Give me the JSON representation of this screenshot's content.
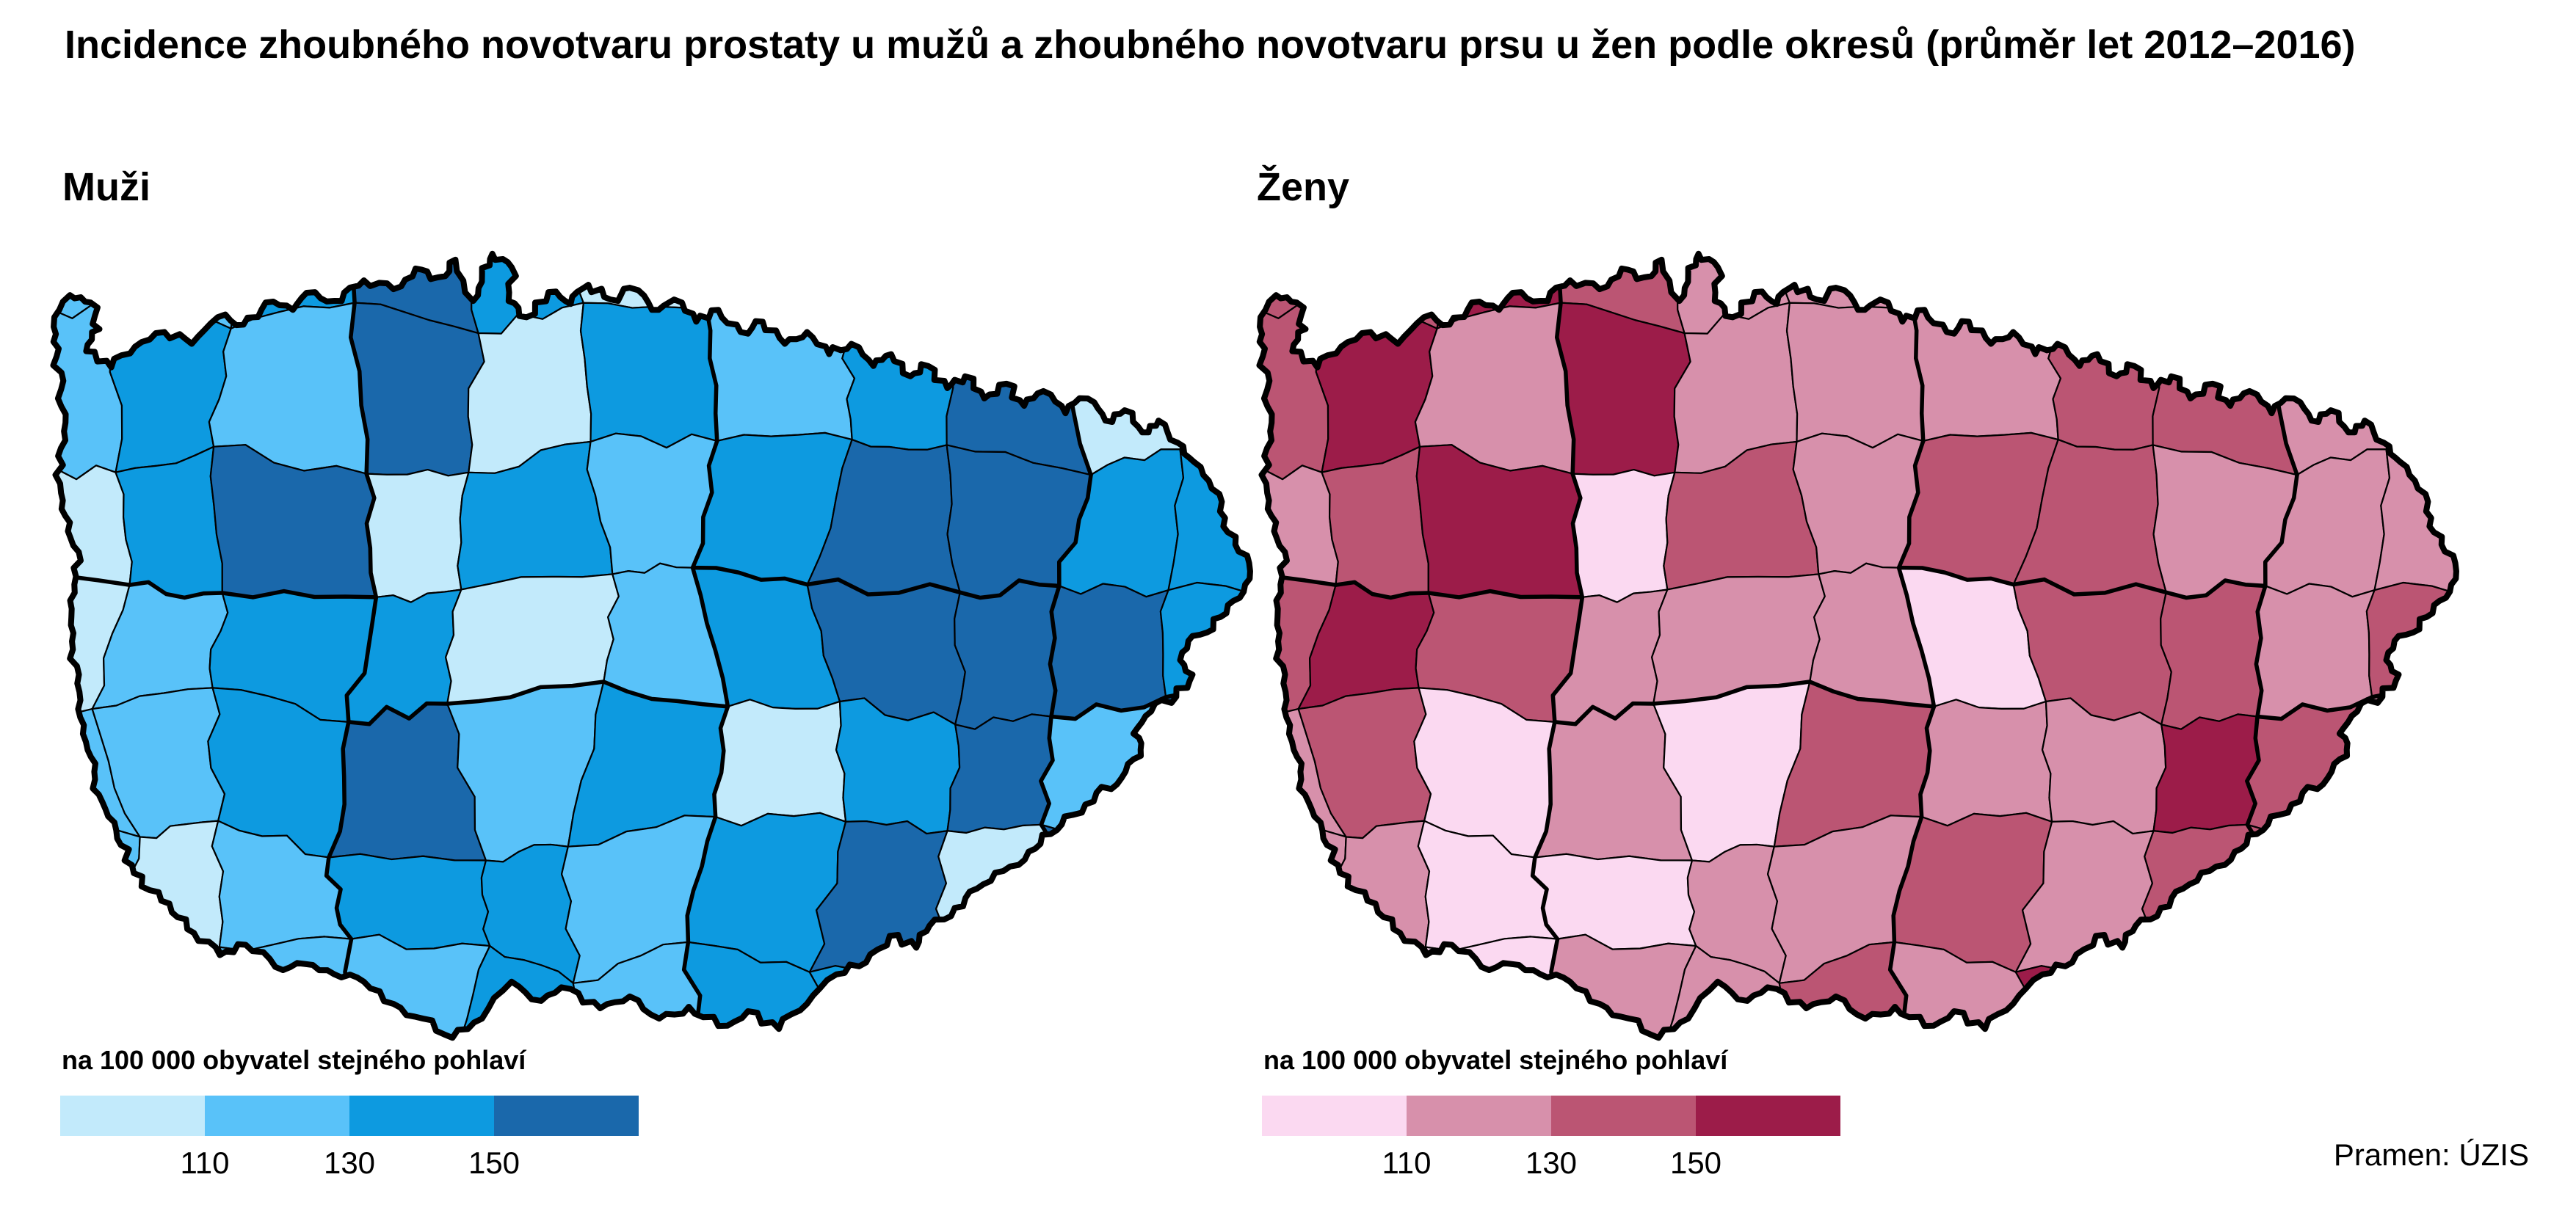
{
  "title": "Incidence zhoubného novotvaru prostaty u mužů a zhoubného novotvaru prsu u žen podle okresů (průměr let 2012–2016)",
  "source": "Pramen: ÚZIS",
  "legend_breaks": [
    110,
    130,
    150
  ],
  "maps": [
    {
      "id": "muzi",
      "label": "Muži",
      "legend_title": "na 100 000 obyvatel stejného pohlaví",
      "legend_ticks": [
        "110",
        "130",
        "150"
      ],
      "palette": [
        "#c2eafb",
        "#59c2f9",
        "#0d9ae0",
        "#1a68ab"
      ],
      "cells": [
        [
          1,
          1,
          2,
          3,
          2,
          0,
          2,
          1,
          2,
          2,
          1
        ],
        [
          1,
          2,
          1,
          3,
          0,
          2,
          1,
          2,
          3,
          0,
          1
        ],
        [
          0,
          2,
          3,
          0,
          2,
          1,
          2,
          3,
          3,
          2,
          2
        ],
        [
          0,
          1,
          2,
          2,
          0,
          1,
          2,
          3,
          3,
          3,
          2
        ],
        [
          1,
          1,
          2,
          3,
          1,
          2,
          0,
          2,
          3,
          1,
          3
        ],
        [
          1,
          0,
          1,
          2,
          2,
          1,
          2,
          3,
          0,
          3,
          2
        ],
        [
          0,
          0,
          1,
          1,
          2,
          1,
          2,
          2,
          3,
          2,
          2
        ]
      ]
    },
    {
      "id": "zeny",
      "label": "Ženy",
      "legend_title": "na 100 000 obyvatel stejného pohlaví",
      "legend_ticks": [
        "110",
        "130",
        "150"
      ],
      "palette": [
        "#fbd9f1",
        "#d790ab",
        "#bb5573",
        "#9c1c49"
      ],
      "cells": [
        [
          2,
          2,
          3,
          2,
          1,
          1,
          2,
          1,
          2,
          2,
          1
        ],
        [
          2,
          3,
          1,
          3,
          1,
          1,
          1,
          2,
          2,
          1,
          1
        ],
        [
          1,
          2,
          3,
          0,
          2,
          1,
          2,
          2,
          1,
          1,
          1
        ],
        [
          2,
          3,
          2,
          1,
          1,
          1,
          0,
          2,
          2,
          1,
          2
        ],
        [
          1,
          2,
          0,
          1,
          0,
          2,
          1,
          1,
          3,
          2,
          1
        ],
        [
          1,
          1,
          0,
          0,
          1,
          1,
          2,
          1,
          2,
          2,
          2
        ],
        [
          0,
          1,
          0,
          1,
          1,
          2,
          1,
          3,
          1,
          2,
          1
        ]
      ]
    }
  ]
}
